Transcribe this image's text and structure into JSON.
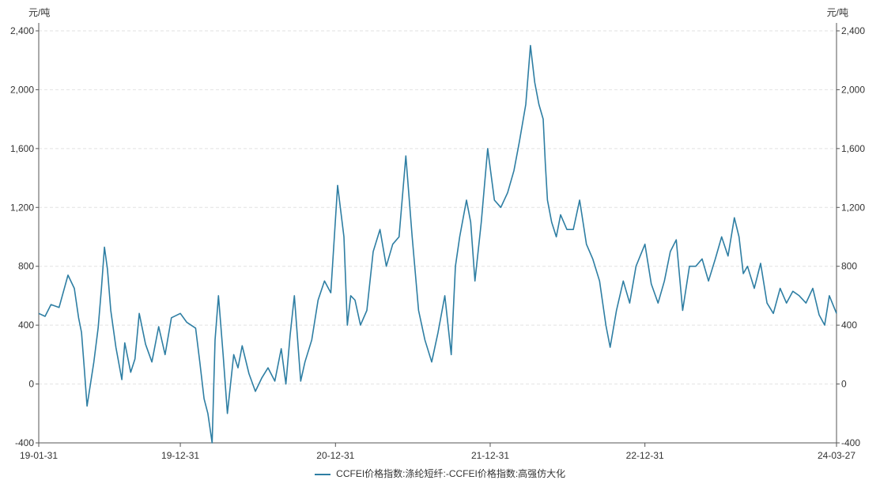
{
  "chart_data": {
    "type": "line",
    "y_unit_left": "元/吨",
    "y_unit_right": "元/吨",
    "ylim": [
      -400,
      2400
    ],
    "yticks": [
      -400,
      0,
      400,
      800,
      1200,
      1600,
      2000,
      2400
    ],
    "ytick_labels": [
      "-400",
      "0",
      "400",
      "800",
      "1,200",
      "1,600",
      "2,000",
      "2,400"
    ],
    "xlim": [
      "2019-01-31",
      "2024-03-27"
    ],
    "xticks": [
      "2019-01-31",
      "2019-12-31",
      "2020-12-31",
      "2021-12-31",
      "2022-12-31",
      "2024-03-27"
    ],
    "xtick_labels": [
      "19-01-31",
      "19-12-31",
      "20-12-31",
      "21-12-31",
      "22-12-31",
      "24-03-27"
    ],
    "grid": "horizontal dashed",
    "legend_position": "bottom-center",
    "colors": {
      "series": "#2e7ea3",
      "grid": "#e2e2e2",
      "axis": "#555555"
    },
    "series": [
      {
        "name": "CCFEI价格指数:涤纶短纤:-CCFEI价格指数:高强仿大化",
        "x": [
          "2019-01-31",
          "2019-02-15",
          "2019-03-01",
          "2019-03-20",
          "2019-04-10",
          "2019-04-25",
          "2019-05-05",
          "2019-05-12",
          "2019-05-18",
          "2019-05-25",
          "2019-06-10",
          "2019-06-20",
          "2019-06-28",
          "2019-07-05",
          "2019-07-12",
          "2019-07-20",
          "2019-08-01",
          "2019-08-15",
          "2019-08-22",
          "2019-09-05",
          "2019-09-15",
          "2019-09-25",
          "2019-10-10",
          "2019-10-25",
          "2019-11-10",
          "2019-11-25",
          "2019-12-10",
          "2019-12-31",
          "2020-01-15",
          "2020-02-05",
          "2020-02-15",
          "2020-02-25",
          "2020-03-05",
          "2020-03-15",
          "2020-03-22",
          "2020-03-30",
          "2020-04-10",
          "2020-04-20",
          "2020-05-05",
          "2020-05-15",
          "2020-05-25",
          "2020-06-10",
          "2020-06-25",
          "2020-07-10",
          "2020-07-25",
          "2020-08-10",
          "2020-08-25",
          "2020-09-05",
          "2020-09-15",
          "2020-09-25",
          "2020-10-10",
          "2020-10-20",
          "2020-11-05",
          "2020-11-20",
          "2020-12-05",
          "2020-12-20",
          "2021-01-05",
          "2021-01-20",
          "2021-01-28",
          "2021-02-05",
          "2021-02-15",
          "2021-02-28",
          "2021-03-15",
          "2021-03-30",
          "2021-04-15",
          "2021-04-30",
          "2021-05-15",
          "2021-05-30",
          "2021-06-15",
          "2021-06-30",
          "2021-07-15",
          "2021-07-30",
          "2021-08-15",
          "2021-08-30",
          "2021-09-15",
          "2021-09-30",
          "2021-10-10",
          "2021-10-20",
          "2021-11-05",
          "2021-11-15",
          "2021-11-25",
          "2021-12-10",
          "2021-12-25",
          "2022-01-10",
          "2022-01-25",
          "2022-02-10",
          "2022-02-25",
          "2022-03-10",
          "2022-03-25",
          "2022-04-05",
          "2022-04-15",
          "2022-04-25",
          "2022-05-05",
          "2022-05-10",
          "2022-05-15",
          "2022-05-25",
          "2022-06-05",
          "2022-06-15",
          "2022-06-30",
          "2022-07-15",
          "2022-07-30",
          "2022-08-15",
          "2022-08-30",
          "2022-09-15",
          "2022-09-30",
          "2022-10-10",
          "2022-10-25",
          "2022-11-10",
          "2022-11-25",
          "2022-12-10",
          "2022-12-31",
          "2023-01-15",
          "2023-01-31",
          "2023-02-15",
          "2023-03-01",
          "2023-03-15",
          "2023-03-30",
          "2023-04-15",
          "2023-04-30",
          "2023-05-15",
          "2023-05-30",
          "2023-06-15",
          "2023-06-30",
          "2023-07-15",
          "2023-07-30",
          "2023-08-10",
          "2023-08-20",
          "2023-08-30",
          "2023-09-15",
          "2023-09-30",
          "2023-10-15",
          "2023-10-30",
          "2023-11-15",
          "2023-11-30",
          "2023-12-15",
          "2023-12-30",
          "2024-01-15",
          "2024-01-31",
          "2024-02-15",
          "2024-02-28",
          "2024-03-10",
          "2024-03-27"
        ],
        "values": [
          480,
          460,
          540,
          520,
          740,
          650,
          450,
          350,
          120,
          -150,
          150,
          380,
          650,
          930,
          780,
          500,
          250,
          30,
          280,
          80,
          170,
          480,
          270,
          150,
          390,
          200,
          450,
          480,
          420,
          380,
          150,
          -100,
          -200,
          -400,
          300,
          600,
          200,
          -200,
          200,
          110,
          260,
          70,
          -50,
          40,
          110,
          20,
          240,
          0,
          330,
          600,
          20,
          150,
          300,
          570,
          700,
          620,
          1350,
          1000,
          400,
          600,
          570,
          400,
          500,
          900,
          1050,
          800,
          950,
          1000,
          1550,
          1000,
          500,
          300,
          150,
          350,
          600,
          200,
          800,
          1000,
          1250,
          1100,
          700,
          1100,
          1600,
          1250,
          1200,
          1300,
          1450,
          1650,
          1900,
          2300,
          2050,
          1900,
          1800,
          1500,
          1250,
          1100,
          1000,
          1150,
          1050,
          1050,
          1250,
          950,
          850,
          700,
          400,
          250,
          500,
          700,
          550,
          800,
          950,
          680,
          550,
          700,
          900,
          980,
          500,
          800,
          800,
          850,
          700,
          850,
          1000,
          870,
          1130,
          1000,
          750,
          800,
          650,
          820,
          550,
          480,
          650,
          550,
          630,
          600,
          550,
          650,
          470,
          400,
          600,
          480
        ]
      }
    ]
  }
}
